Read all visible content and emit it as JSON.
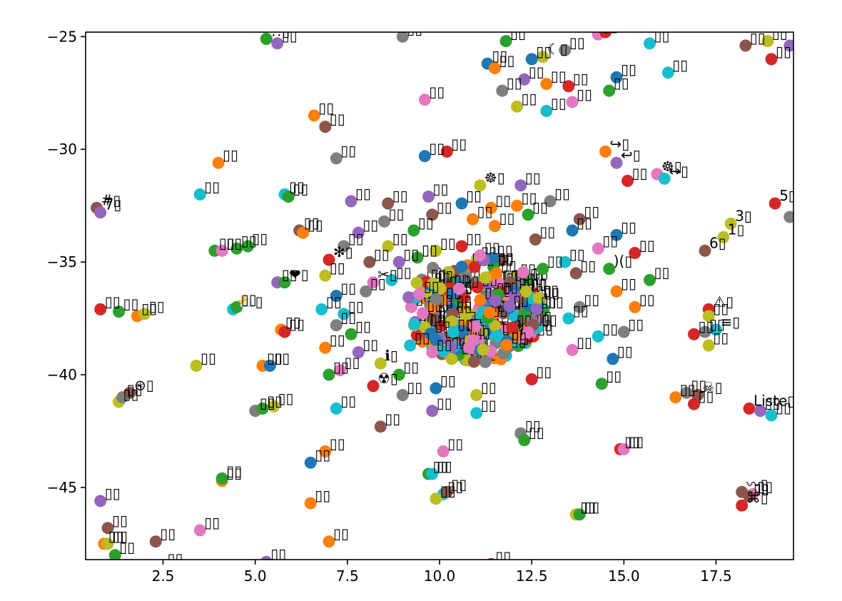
{
  "chart_data": {
    "type": "scatter",
    "title": "",
    "xlabel": "",
    "ylabel": "",
    "xlim": [
      0.4,
      19.6
    ],
    "ylim": [
      -48.2,
      -24.8
    ],
    "grid": false,
    "legend": "none",
    "x_ticks": [
      {
        "value": 2.5,
        "label": "2.5"
      },
      {
        "value": 5.0,
        "label": "5.0"
      },
      {
        "value": 7.5,
        "label": "7.5"
      },
      {
        "value": 10.0,
        "label": "10.0"
      },
      {
        "value": 12.5,
        "label": "12.5"
      },
      {
        "value": 15.0,
        "label": "15.0"
      },
      {
        "value": 17.5,
        "label": "17.5"
      }
    ],
    "y_ticks": [
      {
        "value": -25,
        "label": "−25"
      },
      {
        "value": -30,
        "label": "−30"
      },
      {
        "value": -35,
        "label": "−35"
      },
      {
        "value": -40,
        "label": "−40"
      },
      {
        "value": -45,
        "label": "−45"
      }
    ],
    "palette": [
      "#1f77b4",
      "#ff7f0e",
      "#2ca02c",
      "#d62728",
      "#9467bd",
      "#8c564b",
      "#e377c2",
      "#7f7f7f",
      "#bcbd22",
      "#17becf"
    ],
    "points": [
      {
        "x": 5.3,
        "y": -25.1,
        "c": 2,
        "label": "!!"
      },
      {
        "x": 5.6,
        "y": -25.3,
        "c": 4,
        "label": ""
      },
      {
        "x": 9.0,
        "y": -25.0,
        "c": 7,
        "label": ""
      },
      {
        "x": 11.8,
        "y": -25.2,
        "c": 2,
        "label": ""
      },
      {
        "x": 12.8,
        "y": -25.9,
        "c": 8,
        "label": "☾"
      },
      {
        "x": 13.4,
        "y": -25.6,
        "c": 7,
        "label": ""
      },
      {
        "x": 12.5,
        "y": -26.0,
        "c": 0,
        "label": ""
      },
      {
        "x": 14.3,
        "y": -24.9,
        "c": 6,
        "label": ""
      },
      {
        "x": 14.5,
        "y": -24.8,
        "c": 3,
        "label": ""
      },
      {
        "x": 15.7,
        "y": -25.3,
        "c": 9,
        "label": ""
      },
      {
        "x": 16.2,
        "y": -26.6,
        "c": 9,
        "label": ""
      },
      {
        "x": 11.3,
        "y": -26.2,
        "c": 0,
        "label": ""
      },
      {
        "x": 11.5,
        "y": -26.4,
        "c": 1,
        "label": ""
      },
      {
        "x": 12.3,
        "y": -26.9,
        "c": 4,
        "label": ""
      },
      {
        "x": 12.9,
        "y": -27.1,
        "c": 1,
        "label": ""
      },
      {
        "x": 13.5,
        "y": -27.2,
        "c": 3,
        "label": ""
      },
      {
        "x": 14.6,
        "y": -27.4,
        "c": 2,
        "label": ""
      },
      {
        "x": 14.8,
        "y": -26.8,
        "c": 0,
        "label": ""
      },
      {
        "x": 11.7,
        "y": -27.4,
        "c": 7,
        "label": ""
      },
      {
        "x": 12.9,
        "y": -28.3,
        "c": 9,
        "label": ""
      },
      {
        "x": 13.6,
        "y": -27.9,
        "c": 6,
        "label": ""
      },
      {
        "x": 12.1,
        "y": -28.1,
        "c": 8,
        "label": ""
      },
      {
        "x": 9.6,
        "y": -27.8,
        "c": 6,
        "label": ""
      },
      {
        "x": 18.3,
        "y": -25.4,
        "c": 5,
        "label": ""
      },
      {
        "x": 18.9,
        "y": -25.2,
        "c": 8,
        "label": ""
      },
      {
        "x": 19.0,
        "y": -26.0,
        "c": 3,
        "label": ""
      },
      {
        "x": 19.5,
        "y": -25.4,
        "c": 4,
        "label": ""
      },
      {
        "x": 6.6,
        "y": -28.5,
        "c": 1,
        "label": ""
      },
      {
        "x": 6.9,
        "y": -29.0,
        "c": 5,
        "label": ""
      },
      {
        "x": 7.2,
        "y": -30.4,
        "c": 7,
        "label": ""
      },
      {
        "x": 9.6,
        "y": -30.3,
        "c": 0,
        "label": ""
      },
      {
        "x": 10.2,
        "y": -30.1,
        "c": 3,
        "label": ""
      },
      {
        "x": 14.5,
        "y": -30.1,
        "c": 1,
        "label": "↪"
      },
      {
        "x": 14.8,
        "y": -30.6,
        "c": 4,
        "label": "↩"
      },
      {
        "x": 15.9,
        "y": -31.1,
        "c": 6,
        "label": "☸"
      },
      {
        "x": 16.1,
        "y": -31.3,
        "c": 9,
        "label": "↔"
      },
      {
        "x": 11.1,
        "y": -31.6,
        "c": 8,
        "label": "☸"
      },
      {
        "x": 12.2,
        "y": -31.6,
        "c": 4,
        "label": ""
      },
      {
        "x": 15.1,
        "y": -31.4,
        "c": 3,
        "label": ""
      },
      {
        "x": 4.0,
        "y": -30.6,
        "c": 1,
        "label": ""
      },
      {
        "x": 3.5,
        "y": -32.0,
        "c": 9,
        "label": ""
      },
      {
        "x": 5.8,
        "y": -32.0,
        "c": 9,
        "label": ""
      },
      {
        "x": 5.9,
        "y": -32.1,
        "c": 2,
        "label": ""
      },
      {
        "x": 7.6,
        "y": -32.3,
        "c": 4,
        "label": ""
      },
      {
        "x": 0.7,
        "y": -32.6,
        "c": 5,
        "label": "#"
      },
      {
        "x": 0.8,
        "y": -32.8,
        "c": 4,
        "label": "7"
      },
      {
        "x": 8.6,
        "y": -32.4,
        "c": 5,
        "label": ""
      },
      {
        "x": 9.7,
        "y": -32.1,
        "c": 4,
        "label": ""
      },
      {
        "x": 10.6,
        "y": -32.4,
        "c": 0,
        "label": ""
      },
      {
        "x": 11.4,
        "y": -32.6,
        "c": 1,
        "label": ""
      },
      {
        "x": 12.1,
        "y": -32.5,
        "c": 1,
        "label": ""
      },
      {
        "x": 13.0,
        "y": -32.3,
        "c": 7,
        "label": ""
      },
      {
        "x": 19.1,
        "y": -32.4,
        "c": 3,
        "label": "5"
      },
      {
        "x": 19.5,
        "y": -33.0,
        "c": 7,
        "label": "8"
      },
      {
        "x": 6.2,
        "y": -33.6,
        "c": 5,
        "label": ""
      },
      {
        "x": 6.3,
        "y": -33.7,
        "c": 1,
        "label": ""
      },
      {
        "x": 7.8,
        "y": -33.7,
        "c": 4,
        "label": ""
      },
      {
        "x": 8.5,
        "y": -33.2,
        "c": 7,
        "label": ""
      },
      {
        "x": 9.3,
        "y": -33.6,
        "c": 2,
        "label": ""
      },
      {
        "x": 9.8,
        "y": -32.9,
        "c": 5,
        "label": ""
      },
      {
        "x": 10.9,
        "y": -33.1,
        "c": 1,
        "label": ""
      },
      {
        "x": 11.5,
        "y": -33.4,
        "c": 1,
        "label": ""
      },
      {
        "x": 12.4,
        "y": -32.9,
        "c": 2,
        "label": ""
      },
      {
        "x": 13.6,
        "y": -33.6,
        "c": 0,
        "label": ""
      },
      {
        "x": 13.8,
        "y": -33.1,
        "c": 5,
        "label": ""
      },
      {
        "x": 17.9,
        "y": -33.3,
        "c": 8,
        "label": "3"
      },
      {
        "x": 17.7,
        "y": -33.9,
        "c": 8,
        "label": "1"
      },
      {
        "x": 17.2,
        "y": -34.5,
        "c": 5,
        "label": "6"
      },
      {
        "x": 3.9,
        "y": -34.5,
        "c": 2,
        "label": ""
      },
      {
        "x": 4.1,
        "y": -34.5,
        "c": 6,
        "label": ""
      },
      {
        "x": 4.5,
        "y": -34.4,
        "c": 2,
        "label": ""
      },
      {
        "x": 4.8,
        "y": -34.3,
        "c": 2,
        "label": ""
      },
      {
        "x": 7.4,
        "y": -34.3,
        "c": 7,
        "label": ""
      },
      {
        "x": 8.6,
        "y": -34.3,
        "c": 8,
        "label": ""
      },
      {
        "x": 9.9,
        "y": -34.5,
        "c": 8,
        "label": ""
      },
      {
        "x": 10.6,
        "y": -34.3,
        "c": 3,
        "label": ""
      },
      {
        "x": 11.1,
        "y": -34.7,
        "c": 6,
        "label": ""
      },
      {
        "x": 12.6,
        "y": -34.0,
        "c": 5,
        "label": ""
      },
      {
        "x": 14.3,
        "y": -34.4,
        "c": 6,
        "label": ""
      },
      {
        "x": 14.8,
        "y": -33.8,
        "c": 0,
        "label": ""
      },
      {
        "x": 15.3,
        "y": -34.6,
        "c": 3,
        "label": ""
      },
      {
        "x": 7.0,
        "y": -34.9,
        "c": 3,
        "label": "✻"
      },
      {
        "x": 8.1,
        "y": -35.0,
        "c": 5,
        "label": ""
      },
      {
        "x": 8.9,
        "y": -35.0,
        "c": 4,
        "label": ""
      },
      {
        "x": 9.4,
        "y": -34.8,
        "c": 2,
        "label": ""
      },
      {
        "x": 12.8,
        "y": -35.3,
        "c": 2,
        "label": ""
      },
      {
        "x": 13.4,
        "y": -35.0,
        "c": 9,
        "label": ""
      },
      {
        "x": 13.7,
        "y": -35.5,
        "c": 5,
        "label": ""
      },
      {
        "x": 14.6,
        "y": -35.3,
        "c": 2,
        "label": ")("
      },
      {
        "x": 15.7,
        "y": -35.8,
        "c": 2,
        "label": ""
      },
      {
        "x": 5.6,
        "y": -35.9,
        "c": 4,
        "label": ""
      },
      {
        "x": 5.8,
        "y": -35.9,
        "c": 2,
        "label": "❤"
      },
      {
        "x": 6.9,
        "y": -35.6,
        "c": 8,
        "label": ""
      },
      {
        "x": 7.2,
        "y": -36.5,
        "c": 0,
        "label": ""
      },
      {
        "x": 8.2,
        "y": -35.9,
        "c": 6,
        "label": "✂"
      },
      {
        "x": 8.7,
        "y": -35.8,
        "c": 9,
        "label": ""
      },
      {
        "x": 8.0,
        "y": -36.3,
        "c": 7,
        "label": ""
      },
      {
        "x": 14.8,
        "y": -36.3,
        "c": 1,
        "label": ""
      },
      {
        "x": 0.8,
        "y": -37.1,
        "c": 3,
        "label": ""
      },
      {
        "x": 1.3,
        "y": -37.2,
        "c": 2,
        "label": ""
      },
      {
        "x": 1.8,
        "y": -37.4,
        "c": 1,
        "label": ""
      },
      {
        "x": 2.0,
        "y": -37.3,
        "c": 8,
        "label": ""
      },
      {
        "x": 4.4,
        "y": -37.1,
        "c": 9,
        "label": "⛅"
      },
      {
        "x": 4.5,
        "y": -37.0,
        "c": 2,
        "label": ""
      },
      {
        "x": 6.8,
        "y": -37.1,
        "c": 9,
        "label": ""
      },
      {
        "x": 7.4,
        "y": -37.3,
        "c": 9,
        "label": ""
      },
      {
        "x": 7.2,
        "y": -37.8,
        "c": 7,
        "label": ""
      },
      {
        "x": 7.6,
        "y": -38.2,
        "c": 2,
        "label": ""
      },
      {
        "x": 5.7,
        "y": -38.0,
        "c": 1,
        "label": ""
      },
      {
        "x": 5.8,
        "y": -38.1,
        "c": 3,
        "label": ""
      },
      {
        "x": 17.3,
        "y": -37.1,
        "c": 3,
        "label": "⚠"
      },
      {
        "x": 17.3,
        "y": -37.4,
        "c": 8,
        "label": ""
      },
      {
        "x": 17.5,
        "y": -38.0,
        "c": 9,
        "label": "≡"
      },
      {
        "x": 17.2,
        "y": -38.1,
        "c": 7,
        "label": ""
      },
      {
        "x": 16.9,
        "y": -38.2,
        "c": 3,
        "label": ""
      },
      {
        "x": 17.3,
        "y": -38.7,
        "c": 8,
        "label": ""
      },
      {
        "x": 15.3,
        "y": -37.0,
        "c": 1,
        "label": ""
      },
      {
        "x": 15.0,
        "y": -38.1,
        "c": 7,
        "label": ""
      },
      {
        "x": 14.3,
        "y": -38.3,
        "c": 9,
        "label": ""
      },
      {
        "x": 13.6,
        "y": -38.9,
        "c": 6,
        "label": ""
      },
      {
        "x": 14.7,
        "y": -39.3,
        "c": 0,
        "label": ""
      },
      {
        "x": 13.8,
        "y": -37.0,
        "c": 7,
        "label": ""
      },
      {
        "x": 13.5,
        "y": -37.5,
        "c": 9,
        "label": ""
      },
      {
        "x": 3.4,
        "y": -39.6,
        "c": 8,
        "label": ""
      },
      {
        "x": 5.2,
        "y": -39.6,
        "c": 1,
        "label": ""
      },
      {
        "x": 5.4,
        "y": -39.6,
        "c": 0,
        "label": ""
      },
      {
        "x": 6.9,
        "y": -38.8,
        "c": 1,
        "label": ""
      },
      {
        "x": 7.8,
        "y": -39.0,
        "c": 4,
        "label": ""
      },
      {
        "x": 7.3,
        "y": -39.8,
        "c": 6,
        "label": ""
      },
      {
        "x": 7.0,
        "y": -40.0,
        "c": 2,
        "label": ""
      },
      {
        "x": 8.4,
        "y": -39.5,
        "c": 8,
        "label": "ℹ"
      },
      {
        "x": 8.9,
        "y": -40.0,
        "c": 2,
        "label": ""
      },
      {
        "x": 8.2,
        "y": -40.5,
        "c": 3,
        "label": "☢"
      },
      {
        "x": 9.2,
        "y": -38.7,
        "c": 9,
        "label": ""
      },
      {
        "x": 9.8,
        "y": -39.0,
        "c": 6,
        "label": ""
      },
      {
        "x": 12.5,
        "y": -40.2,
        "c": 3,
        "label": ""
      },
      {
        "x": 14.4,
        "y": -40.4,
        "c": 2,
        "label": ""
      },
      {
        "x": 9.0,
        "y": -40.9,
        "c": 7,
        "label": ""
      },
      {
        "x": 9.9,
        "y": -40.6,
        "c": 0,
        "label": ""
      },
      {
        "x": 11.0,
        "y": -40.9,
        "c": 8,
        "label": ""
      },
      {
        "x": 16.4,
        "y": -41.0,
        "c": 1,
        "label": ""
      },
      {
        "x": 16.7,
        "y": -40.8,
        "c": 7,
        "label": ""
      },
      {
        "x": 17.0,
        "y": -40.9,
        "c": 5,
        "label": "☠"
      },
      {
        "x": 16.9,
        "y": -41.3,
        "c": 3,
        "label": ""
      },
      {
        "x": 1.3,
        "y": -41.2,
        "c": 8,
        "label": ""
      },
      {
        "x": 1.4,
        "y": -41.0,
        "c": 7,
        "label": ""
      },
      {
        "x": 1.6,
        "y": -40.8,
        "c": 5,
        "label": "⊛"
      },
      {
        "x": 5.0,
        "y": -41.6,
        "c": 7,
        "label": ""
      },
      {
        "x": 5.2,
        "y": -41.5,
        "c": 2,
        "label": ""
      },
      {
        "x": 5.5,
        "y": -41.4,
        "c": 8,
        "label": ""
      },
      {
        "x": 7.2,
        "y": -41.5,
        "c": 9,
        "label": ""
      },
      {
        "x": 9.8,
        "y": -41.6,
        "c": 4,
        "label": ""
      },
      {
        "x": 11.0,
        "y": -41.7,
        "c": 9,
        "label": ""
      },
      {
        "x": 18.4,
        "y": -41.5,
        "c": 3,
        "label": "Liste"
      },
      {
        "x": 18.7,
        "y": -41.6,
        "c": 4,
        "label": ""
      },
      {
        "x": 19.0,
        "y": -41.8,
        "c": 9,
        "label": ""
      },
      {
        "x": 8.4,
        "y": -42.3,
        "c": 5,
        "label": ""
      },
      {
        "x": 12.2,
        "y": -42.6,
        "c": 7,
        "label": ""
      },
      {
        "x": 12.3,
        "y": -42.9,
        "c": 2,
        "label": ""
      },
      {
        "x": 10.1,
        "y": -43.4,
        "c": 6,
        "label": ""
      },
      {
        "x": 6.9,
        "y": -43.4,
        "c": 1,
        "label": ""
      },
      {
        "x": 6.5,
        "y": -43.9,
        "c": 0,
        "label": ""
      },
      {
        "x": 14.9,
        "y": -43.3,
        "c": 3,
        "label": ""
      },
      {
        "x": 15.0,
        "y": -43.3,
        "c": 6,
        "label": ""
      },
      {
        "x": 9.7,
        "y": -44.4,
        "c": 2,
        "label": ""
      },
      {
        "x": 9.8,
        "y": -44.4,
        "c": 9,
        "label": ""
      },
      {
        "x": 4.1,
        "y": -44.7,
        "c": 1,
        "label": ""
      },
      {
        "x": 4.1,
        "y": -44.6,
        "c": 2,
        "label": ""
      },
      {
        "x": 10.1,
        "y": -45.3,
        "c": 9,
        "label": ""
      },
      {
        "x": 10.2,
        "y": -45.2,
        "c": 5,
        "label": ""
      },
      {
        "x": 9.9,
        "y": -45.5,
        "c": 8,
        "label": ""
      },
      {
        "x": 0.8,
        "y": -45.6,
        "c": 4,
        "label": ""
      },
      {
        "x": 6.5,
        "y": -45.7,
        "c": 1,
        "label": ""
      },
      {
        "x": 18.2,
        "y": -45.2,
        "c": 5,
        "label": "〰"
      },
      {
        "x": 18.5,
        "y": -45.3,
        "c": 6,
        "label": ""
      },
      {
        "x": 18.2,
        "y": -45.8,
        "c": 3,
        "label": "⌘"
      },
      {
        "x": 18.4,
        "y": -45.4,
        "c": 5,
        "label": ""
      },
      {
        "x": 13.7,
        "y": -46.2,
        "c": 8,
        "label": ""
      },
      {
        "x": 13.8,
        "y": -46.2,
        "c": 2,
        "label": ""
      },
      {
        "x": 1.0,
        "y": -46.8,
        "c": 5,
        "label": ""
      },
      {
        "x": 3.5,
        "y": -46.9,
        "c": 6,
        "label": ""
      },
      {
        "x": 0.9,
        "y": -47.5,
        "c": 1,
        "label": ""
      },
      {
        "x": 1.0,
        "y": -47.5,
        "c": 8,
        "label": ""
      },
      {
        "x": 2.3,
        "y": -47.4,
        "c": 5,
        "label": ""
      },
      {
        "x": 7.0,
        "y": -47.4,
        "c": 1,
        "label": ""
      },
      {
        "x": 1.2,
        "y": -48.0,
        "c": 2,
        "label": ""
      },
      {
        "x": 5.3,
        "y": -48.3,
        "c": 4,
        "label": ""
      },
      {
        "x": 2.5,
        "y": -48.5,
        "c": 1,
        "label": ""
      },
      {
        "x": 11.4,
        "y": -48.4,
        "c": 3,
        "label": ""
      }
    ],
    "cluster": {
      "cx": 11.0,
      "cy": -37.1,
      "rx": 1.9,
      "ry": 2.4,
      "count": 260
    }
  }
}
